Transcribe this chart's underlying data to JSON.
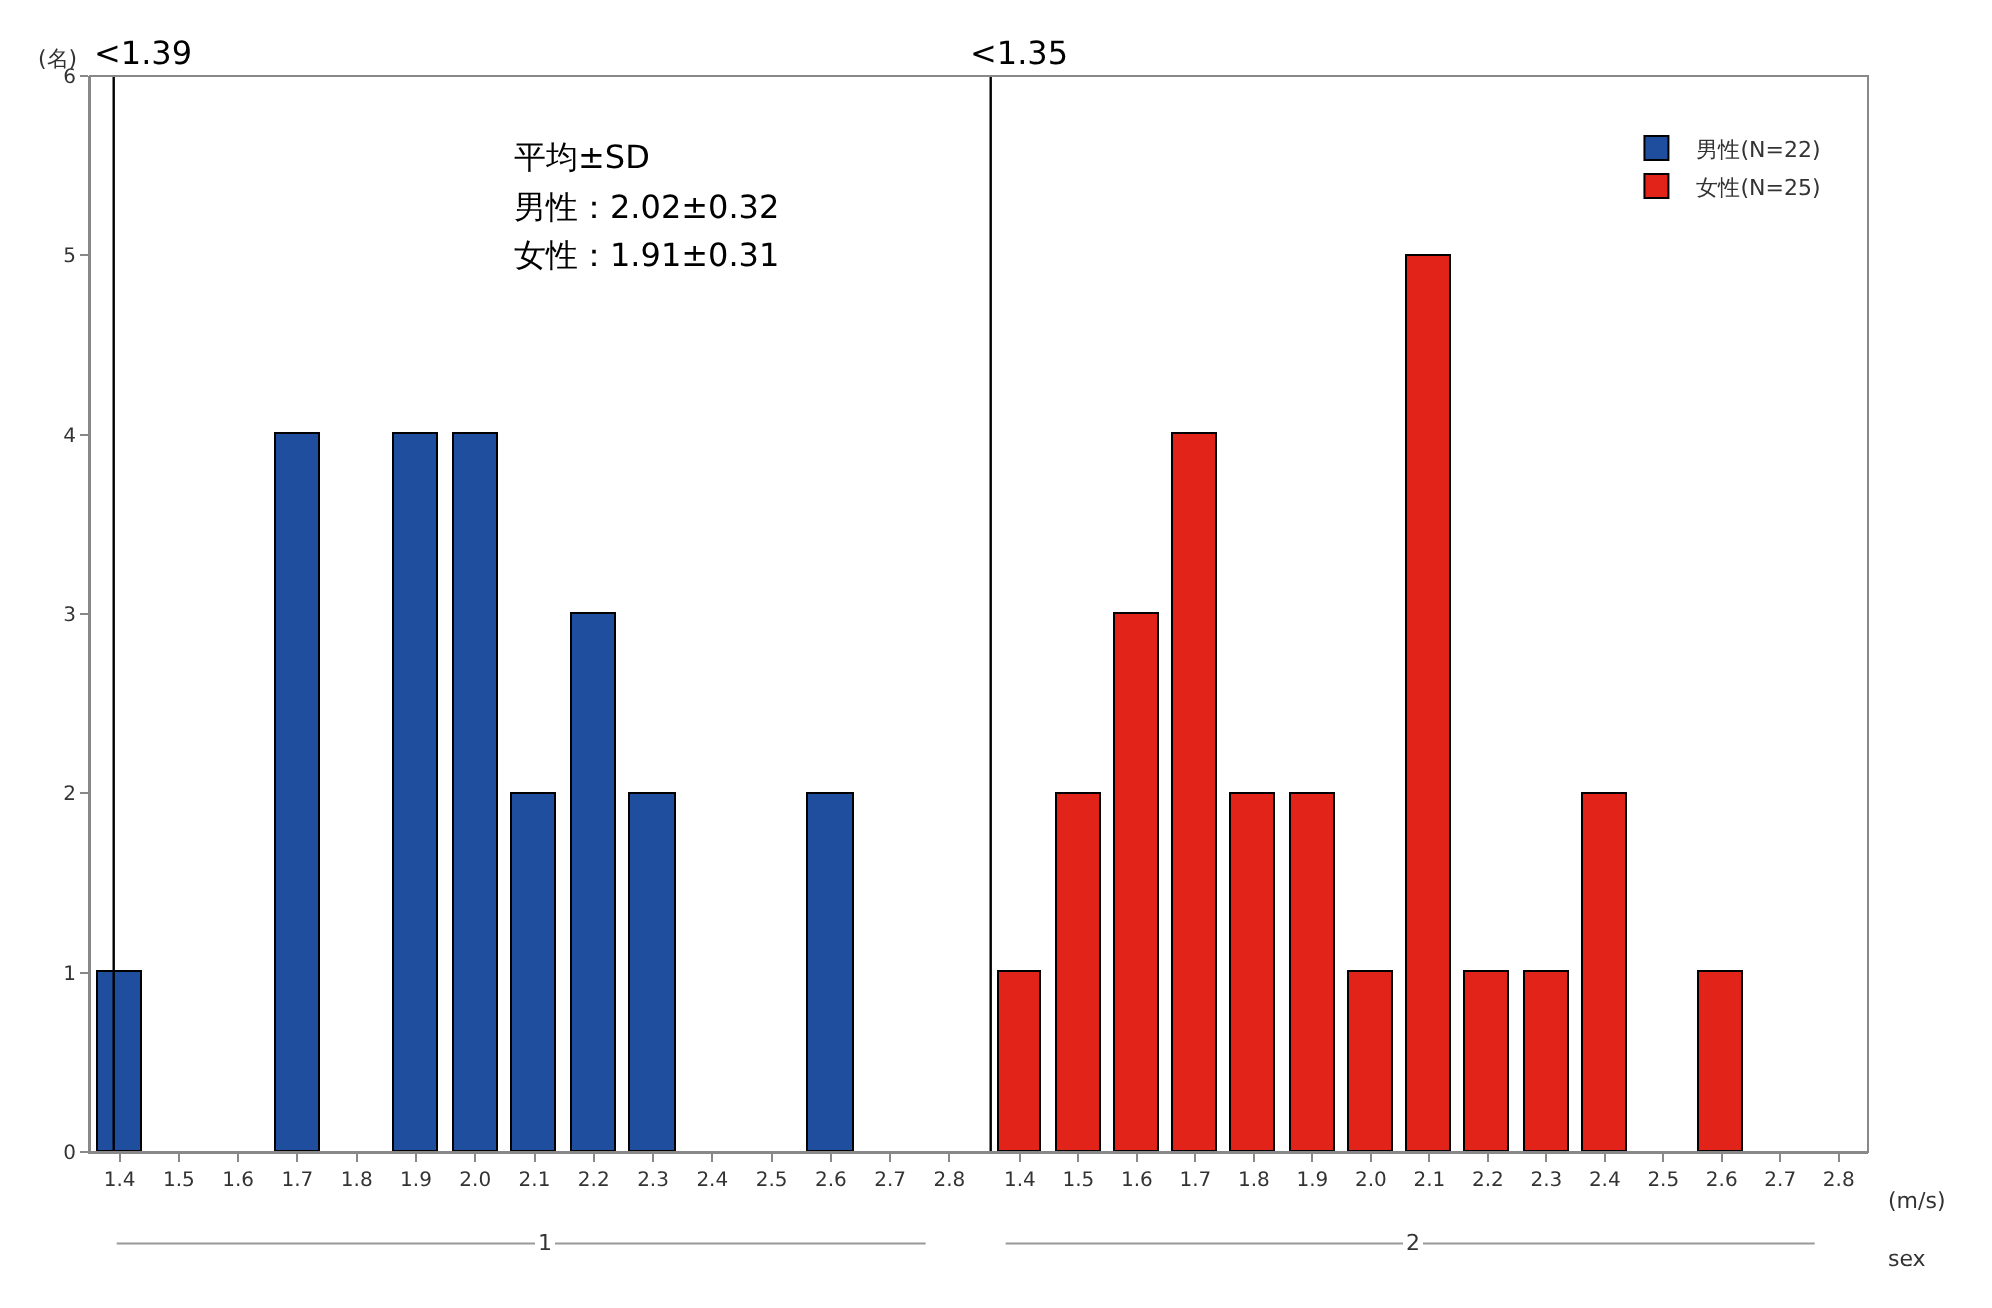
{
  "chart_data": [
    {
      "type": "bar",
      "xlabel": "1",
      "ylabel": "(名)",
      "x": [
        1.4,
        1.5,
        1.6,
        1.7,
        1.8,
        1.9,
        2.0,
        2.1,
        2.2,
        2.3,
        2.4,
        2.5,
        2.6,
        2.7,
        2.8
      ],
      "series": [
        {
          "name": "男性(N=22)",
          "color": "#1f4e9e",
          "values": [
            1,
            0,
            0,
            4,
            0,
            4,
            4,
            2,
            3,
            2,
            0,
            0,
            2,
            0,
            0
          ]
        }
      ],
      "xlim": [
        1.35,
        2.85
      ],
      "xticks": [
        1.4,
        1.5,
        1.6,
        1.7,
        1.8,
        1.9,
        {
          "value": 2.0,
          "label": "2.0"
        },
        2.1,
        2.2,
        2.3,
        2.4,
        2.5,
        2.6,
        2.7,
        2.8
      ],
      "ylim": [
        0,
        6
      ],
      "yticks": [
        0,
        1,
        2,
        3,
        4,
        5,
        6
      ],
      "legend": "top right",
      "ref_lines": [
        {
          "axis": "x",
          "value": 1.39,
          "label": "<1.39",
          "color": "#000000"
        }
      ],
      "annotations": [
        "平均±SD",
        "男性：2.02±0.32",
        "女性：1.91±0.31"
      ]
    },
    {
      "type": "bar",
      "xlabel": "2",
      "x": [
        1.4,
        1.5,
        1.6,
        1.7,
        1.8,
        1.9,
        2.0,
        2.1,
        2.2,
        2.3,
        2.4,
        2.5,
        2.6,
        2.7,
        2.8
      ],
      "series": [
        {
          "name": "女性(N=25)",
          "color": "#e2231a",
          "values": [
            1,
            2,
            3,
            4,
            2,
            2,
            1,
            5,
            1,
            1,
            2,
            0,
            1,
            0,
            0
          ]
        }
      ],
      "xlim": [
        1.33,
        2.85
      ],
      "xticks": [
        1.4,
        1.5,
        1.6,
        1.7,
        1.8,
        1.9,
        {
          "value": 2.0,
          "label": "2.0"
        },
        2.1,
        2.2,
        2.3,
        2.4,
        2.5,
        2.6,
        2.7,
        2.8
      ],
      "ylim": [
        0,
        6
      ],
      "yticks": [
        0,
        1,
        2,
        3,
        4,
        5,
        6
      ],
      "legend": "top right",
      "tick_labels": "x",
      "ref_lines": [
        {
          "axis": "x",
          "value": 1.35,
          "label": "<1.35",
          "color": "#000000"
        }
      ],
      "annotations": [
        "(m/s)",
        "sex"
      ]
    }
  ]
}
